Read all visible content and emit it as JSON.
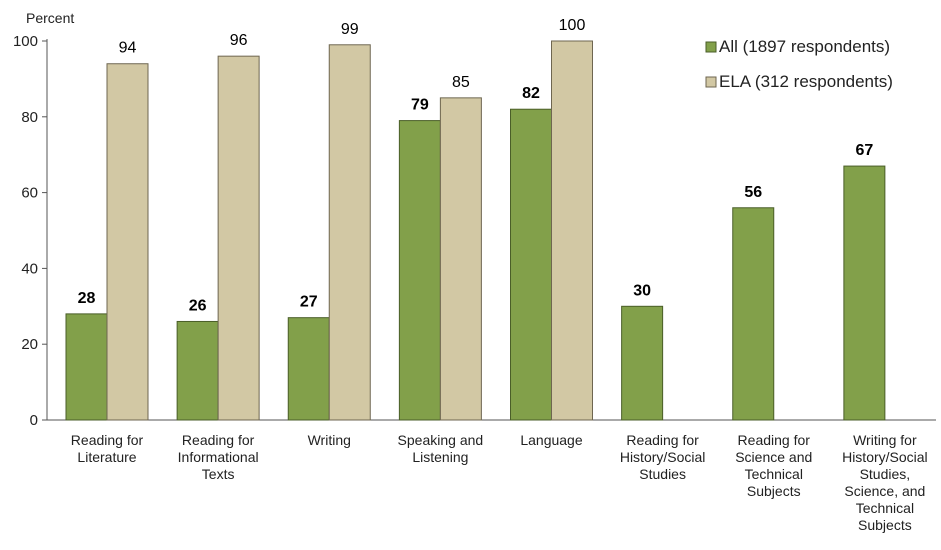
{
  "chart_data": {
    "type": "bar",
    "ylabel": "Percent",
    "ylim": [
      0,
      100
    ],
    "yticks": [
      0,
      20,
      40,
      60,
      80,
      100
    ],
    "grid": false,
    "legend_position": "top-right",
    "categories": [
      [
        "Reading for",
        "Literature"
      ],
      [
        "Reading for",
        "Informational",
        "Texts"
      ],
      [
        "Writing"
      ],
      [
        "Speaking and",
        "Listening"
      ],
      [
        "Language"
      ],
      [
        "Reading for",
        "History/Social",
        "Studies"
      ],
      [
        "Reading for",
        "Science and",
        "Technical",
        "Subjects"
      ],
      [
        "Writing for",
        "History/Social",
        "Studies,",
        "Science, and",
        "Technical",
        "Subjects"
      ]
    ],
    "series": [
      {
        "name": "All (1897 respondents)",
        "color": "#82a04a",
        "stroke": "#4a5e28",
        "bold_labels": true,
        "values": [
          28,
          26,
          27,
          79,
          82,
          30,
          56,
          67
        ]
      },
      {
        "name": "ELA (312 respondents)",
        "color": "#d2c8a4",
        "stroke": "#6e6650",
        "bold_labels": false,
        "values": [
          94,
          96,
          99,
          85,
          100,
          null,
          null,
          null
        ]
      }
    ]
  }
}
